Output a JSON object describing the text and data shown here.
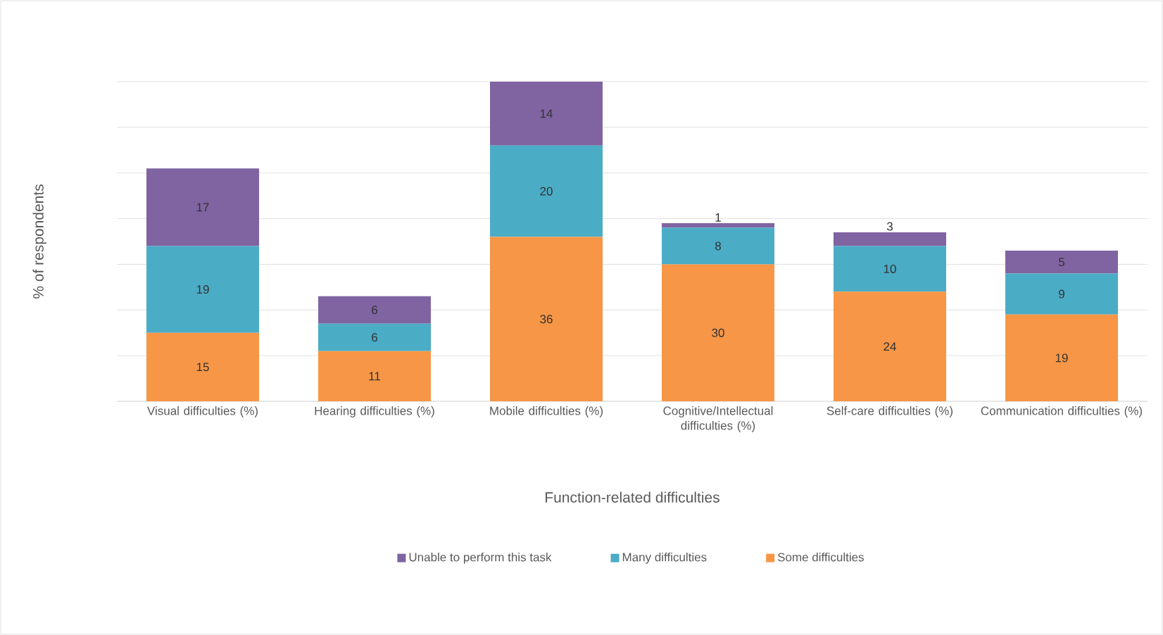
{
  "chart_data": {
    "type": "bar",
    "stacked": true,
    "xlabel": "Function-related difficulties",
    "ylabel": "% of respondents",
    "categories": [
      "Visual difficulties (%)",
      "Hearing difficulties (%)",
      "Mobile difficulties (%)",
      "Cognitive/Intellectual difficulties (%)",
      "Self-care difficulties (%)",
      "Communication difficulties (%)"
    ],
    "series": [
      {
        "name": "Some difficulties",
        "color": "#f79646",
        "values": [
          15,
          11,
          36,
          30,
          24,
          19
        ]
      },
      {
        "name": "Many difficulties",
        "color": "#4bacc6",
        "values": [
          19,
          6,
          20,
          8,
          10,
          9
        ]
      },
      {
        "name": "Unable to perform this task",
        "color": "#8064a2",
        "values": [
          17,
          6,
          14,
          1,
          3,
          5
        ]
      }
    ],
    "ylim": [
      0,
      70
    ],
    "yticks": [
      {
        "value": 0,
        "label": null
      },
      {
        "value": 10,
        "label": null
      },
      {
        "value": 20,
        "label": null
      },
      {
        "value": 30,
        "label": null
      },
      {
        "value": 40,
        "label": null
      },
      {
        "value": 50,
        "label": null
      },
      {
        "value": 60,
        "label": null
      },
      {
        "value": 70,
        "label": null
      }
    ],
    "tick_labels": "x",
    "grid": "y",
    "data_labels": true,
    "legend": "bottom"
  }
}
